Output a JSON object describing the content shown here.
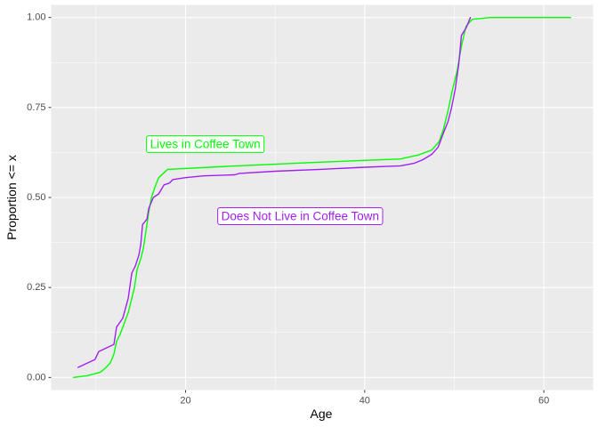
{
  "chart_data": {
    "type": "line",
    "title": "",
    "xlabel": "Age",
    "ylabel": "Proportion <= x",
    "xlim": [
      5,
      65.5
    ],
    "ylim": [
      -0.035,
      1.035
    ],
    "x_ticks": [
      20,
      40,
      60
    ],
    "x_tick_labels": [
      "20",
      "40",
      "60"
    ],
    "x_minor_ticks": [
      10,
      30,
      50
    ],
    "y_ticks": [
      0,
      0.25,
      0.5,
      0.75,
      1.0
    ],
    "y_tick_labels": [
      "0.00",
      "0.25",
      "0.50",
      "0.75",
      "1.00"
    ],
    "grid": true,
    "legend": "none",
    "series": [
      {
        "color": "#00ff00",
        "points": [
          [
            7.5,
            0.0
          ],
          [
            9,
            0.005
          ],
          [
            9.8,
            0.01
          ],
          [
            10.5,
            0.015
          ],
          [
            11,
            0.025
          ],
          [
            11.6,
            0.04
          ],
          [
            12,
            0.065
          ],
          [
            12.3,
            0.1
          ],
          [
            12.7,
            0.12
          ],
          [
            13,
            0.14
          ],
          [
            13.3,
            0.16
          ],
          [
            13.6,
            0.18
          ],
          [
            14,
            0.22
          ],
          [
            14.3,
            0.25
          ],
          [
            14.6,
            0.3
          ],
          [
            15,
            0.33
          ],
          [
            15.3,
            0.36
          ],
          [
            15.6,
            0.41
          ],
          [
            15.9,
            0.46
          ],
          [
            16.2,
            0.5
          ],
          [
            16.6,
            0.53
          ],
          [
            17,
            0.555
          ],
          [
            18,
            0.578
          ],
          [
            25,
            0.587
          ],
          [
            35,
            0.598
          ],
          [
            44,
            0.607
          ],
          [
            46,
            0.618
          ],
          [
            47.5,
            0.632
          ],
          [
            48.3,
            0.655
          ],
          [
            48.8,
            0.69
          ],
          [
            49.3,
            0.74
          ],
          [
            49.8,
            0.8
          ],
          [
            50.3,
            0.85
          ],
          [
            50.8,
            0.92
          ],
          [
            51.3,
            0.975
          ],
          [
            52,
            0.995
          ],
          [
            54,
            1.0
          ],
          [
            63,
            1.0
          ]
        ]
      },
      {
        "color": "#a020f0",
        "points": [
          [
            8,
            0.028
          ],
          [
            9.9,
            0.05
          ],
          [
            10.3,
            0.072
          ],
          [
            12,
            0.092
          ],
          [
            12.3,
            0.14
          ],
          [
            13,
            0.165
          ],
          [
            13.6,
            0.22
          ],
          [
            14,
            0.29
          ],
          [
            14.4,
            0.31
          ],
          [
            14.8,
            0.34
          ],
          [
            15,
            0.37
          ],
          [
            15.2,
            0.425
          ],
          [
            15.7,
            0.44
          ],
          [
            15.9,
            0.47
          ],
          [
            16.4,
            0.5
          ],
          [
            17,
            0.51
          ],
          [
            17.6,
            0.535
          ],
          [
            18.2,
            0.54
          ],
          [
            18.6,
            0.55
          ],
          [
            20,
            0.555
          ],
          [
            22,
            0.56
          ],
          [
            25.5,
            0.563
          ],
          [
            26,
            0.567
          ],
          [
            30,
            0.573
          ],
          [
            35,
            0.578
          ],
          [
            40,
            0.584
          ],
          [
            44,
            0.588
          ],
          [
            45.5,
            0.595
          ],
          [
            46.5,
            0.605
          ],
          [
            47.5,
            0.62
          ],
          [
            48.2,
            0.64
          ],
          [
            48.8,
            0.68
          ],
          [
            49.3,
            0.71
          ],
          [
            49.7,
            0.75
          ],
          [
            50.1,
            0.8
          ],
          [
            50.5,
            0.87
          ],
          [
            50.8,
            0.95
          ],
          [
            51.3,
            0.97
          ],
          [
            51.8,
            1.0
          ]
        ]
      }
    ],
    "annotations": [
      {
        "text": "Lives in Coffee Town",
        "x": 22.2,
        "y": 0.648,
        "color": "#00ff00"
      },
      {
        "text": "Does Not Live in Coffee Town",
        "x": 32.8,
        "y": 0.448,
        "color": "#a020f0"
      }
    ]
  }
}
